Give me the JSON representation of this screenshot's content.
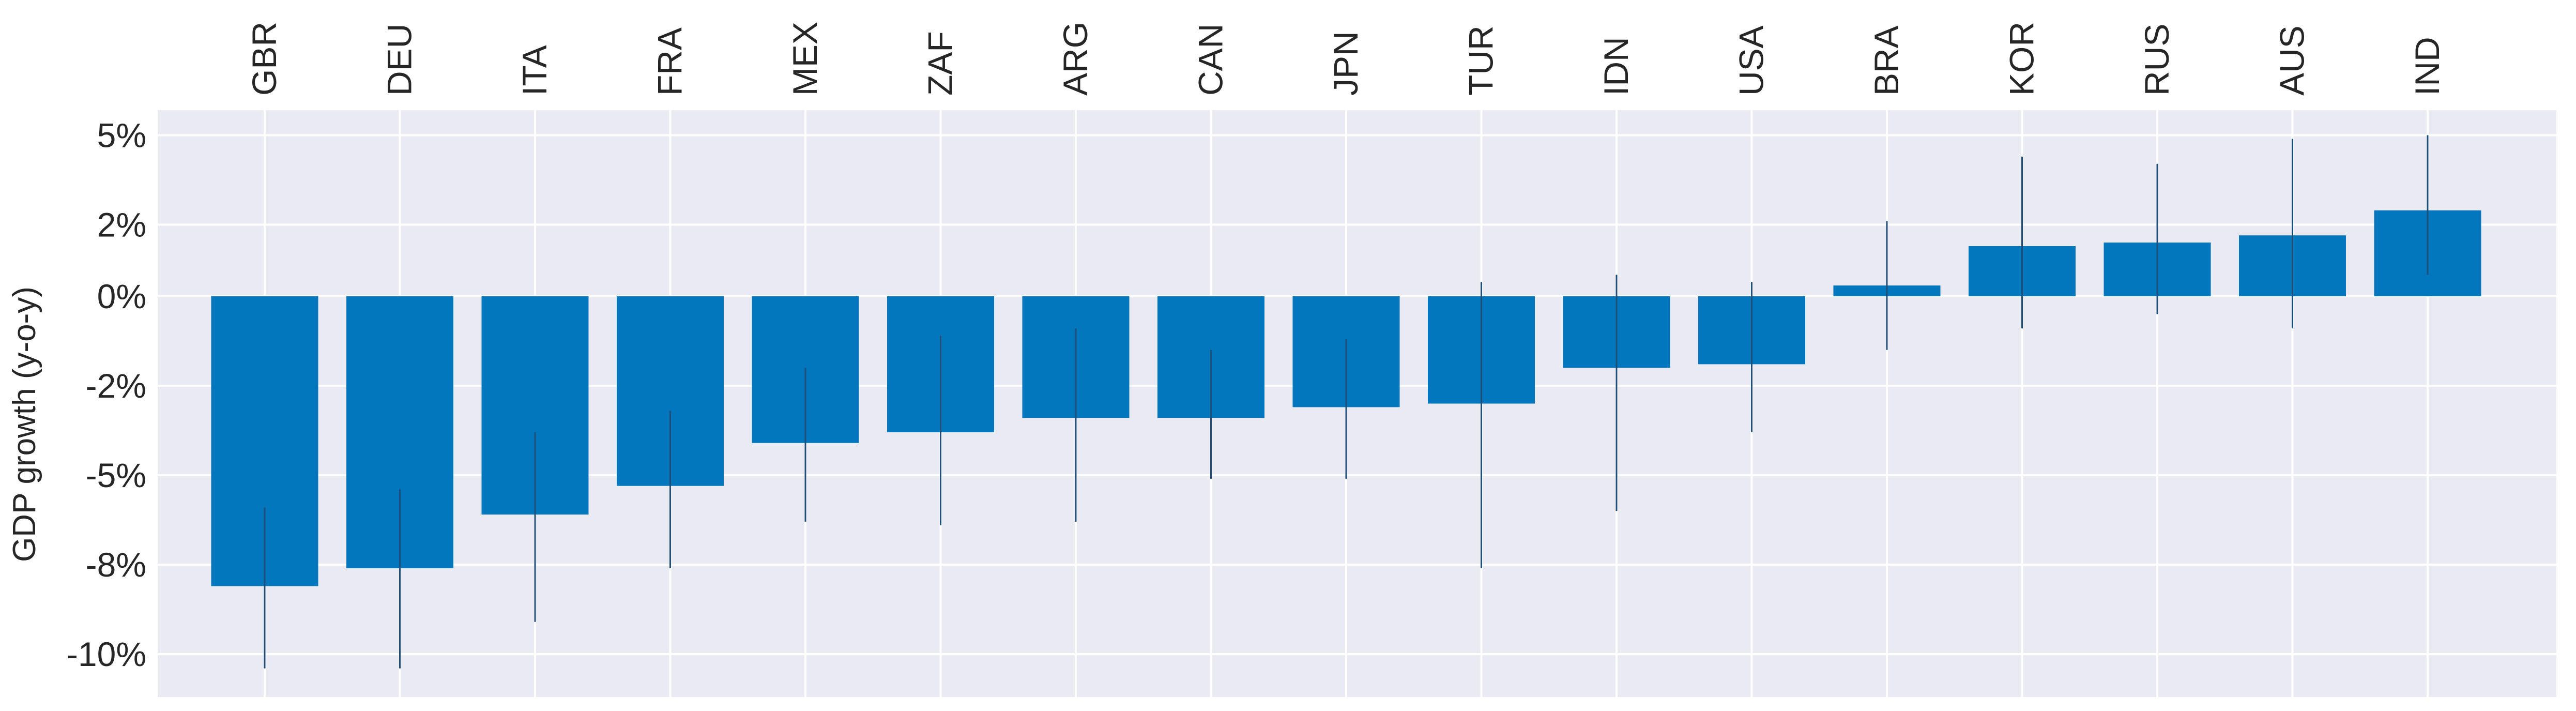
{
  "chart_data": {
    "type": "bar",
    "title": "",
    "xlabel": "",
    "ylabel": "GDP growth (y-o-y)",
    "x_tick_position": "top",
    "categories": [
      "GBR",
      "DEU",
      "ITA",
      "FRA",
      "MEX",
      "ZAF",
      "ARG",
      "CAN",
      "JPN",
      "TUR",
      "IDN",
      "USA",
      "BRA",
      "KOR",
      "RUS",
      "AUS",
      "IND"
    ],
    "values": [
      -8.1,
      -7.6,
      -6.1,
      -5.3,
      -4.1,
      -3.8,
      -3.4,
      -3.4,
      -3.1,
      -3.0,
      -2.0,
      -1.9,
      0.3,
      1.4,
      1.5,
      1.7,
      2.4
    ],
    "error_low": [
      -10.4,
      -10.4,
      -9.1,
      -7.6,
      -6.3,
      -6.4,
      -6.3,
      -5.1,
      -5.1,
      -7.6,
      -6.0,
      -3.8,
      -1.5,
      -0.9,
      -0.5,
      -0.9,
      0.6
    ],
    "error_high": [
      -5.9,
      -5.4,
      -3.8,
      -3.2,
      -2.0,
      -1.1,
      -0.9,
      -1.5,
      -1.2,
      0.4,
      0.6,
      0.4,
      2.1,
      3.9,
      3.7,
      4.4,
      4.5
    ],
    "ylim": [
      -11.2,
      5.2
    ],
    "yticks": [
      4.5,
      2.0,
      0.0,
      -2.5,
      -5.0,
      -7.5,
      -10.0
    ],
    "ytick_labels": [
      "5%",
      "2%",
      "0%",
      "-2%",
      "-5%",
      "-8%",
      "-10%"
    ],
    "grid": true,
    "colors": {
      "bar": "#0277bd",
      "error_bar": "#1f4e79",
      "plot_background": "#eaeaf2",
      "grid": "#ffffff",
      "text": "#262626"
    }
  }
}
